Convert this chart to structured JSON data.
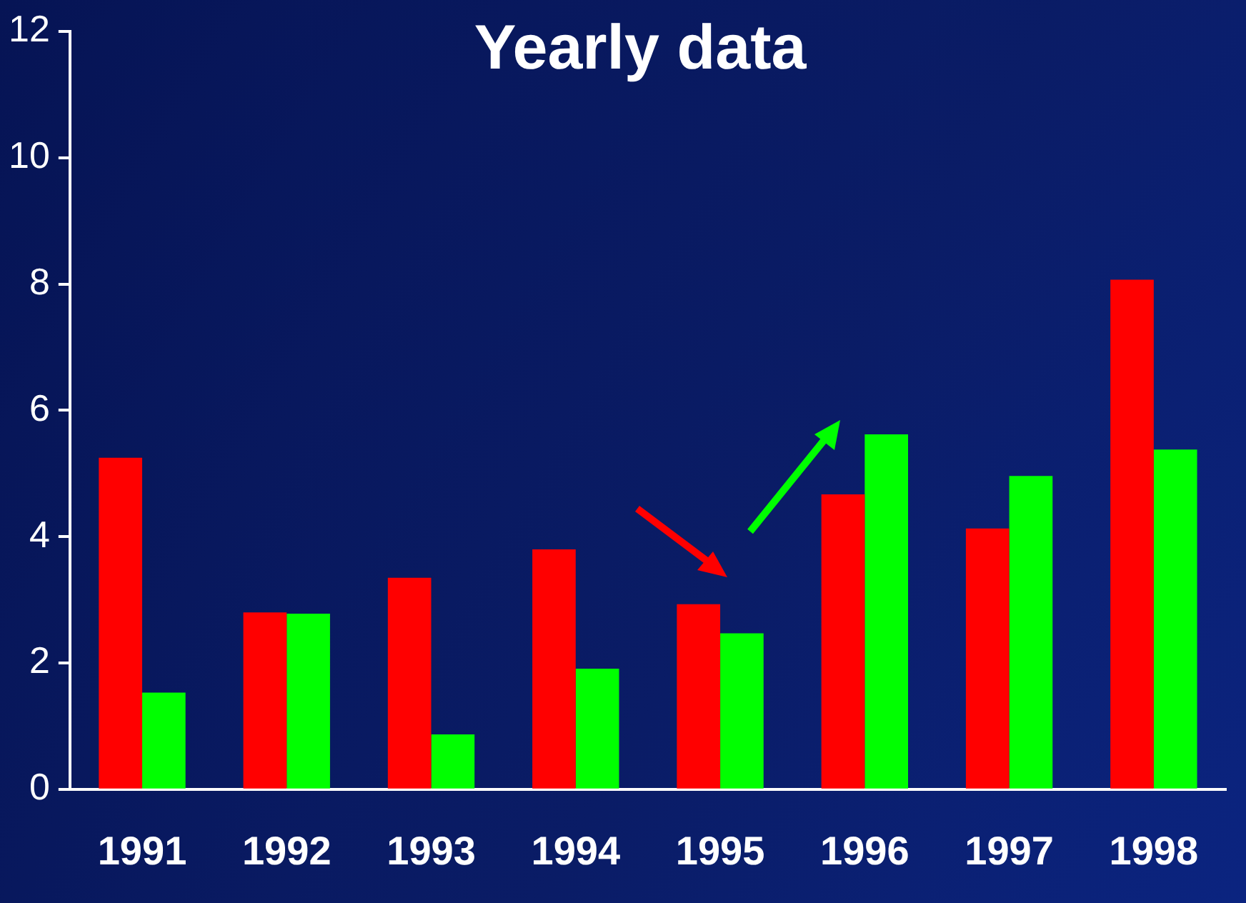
{
  "chart_data": {
    "type": "bar",
    "title": "Yearly data",
    "categories": [
      "1991",
      "1992",
      "1993",
      "1994",
      "1995",
      "1996",
      "1997",
      "1998"
    ],
    "series": [
      {
        "color": "#ff0000",
        "values": [
          5.25,
          2.8,
          3.35,
          3.8,
          2.93,
          4.67,
          4.13,
          8.07
        ]
      },
      {
        "color": "#00ff00",
        "values": [
          1.53,
          2.78,
          0.87,
          1.91,
          2.47,
          5.62,
          4.96,
          5.38
        ]
      }
    ],
    "ylim": [
      0,
      12
    ],
    "yticks": [
      0,
      2,
      4,
      6,
      8,
      10,
      12
    ],
    "grid": false,
    "legend": false
  }
}
